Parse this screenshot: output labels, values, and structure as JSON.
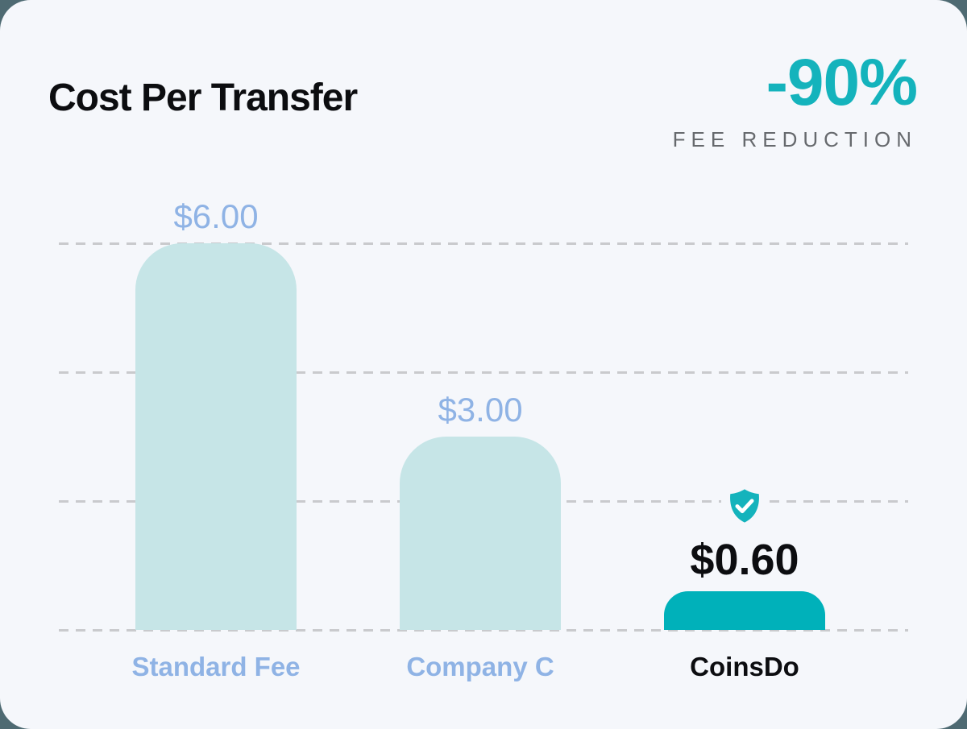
{
  "header": {
    "title": "Cost Per Transfer",
    "stat_value": "-90%",
    "stat_caption": "FEE REDUCTION"
  },
  "chart_data": {
    "type": "bar",
    "title": "Cost Per Transfer",
    "categories": [
      "Standard Fee",
      "Company C",
      "CoinsDo"
    ],
    "values": [
      6.0,
      3.0,
      0.6
    ],
    "value_labels": [
      "$6.00",
      "$3.00",
      "$0.60"
    ],
    "xlabel": "",
    "ylabel": "",
    "ylim": [
      0,
      6
    ],
    "gridline_values": [
      0,
      2,
      4,
      6
    ],
    "grid_style": "dashed-horizontal",
    "legend": "none",
    "highlight_index": 2,
    "highlight_icon": "shield-check-icon",
    "annotation": "-90% FEE REDUCTION"
  },
  "colors": {
    "page_background": "#4e6a72",
    "card_background": "#f5f7fb",
    "title_text": "#0c0d10",
    "accent_teal": "#14b3bc",
    "highlight_bar_teal": "#00b1ba",
    "muted_bar_light_teal": "#c6e5e7",
    "blue_label": "#8fb3e5",
    "caption_gray": "#66696d",
    "gridline_gray": "#c9cacd"
  }
}
